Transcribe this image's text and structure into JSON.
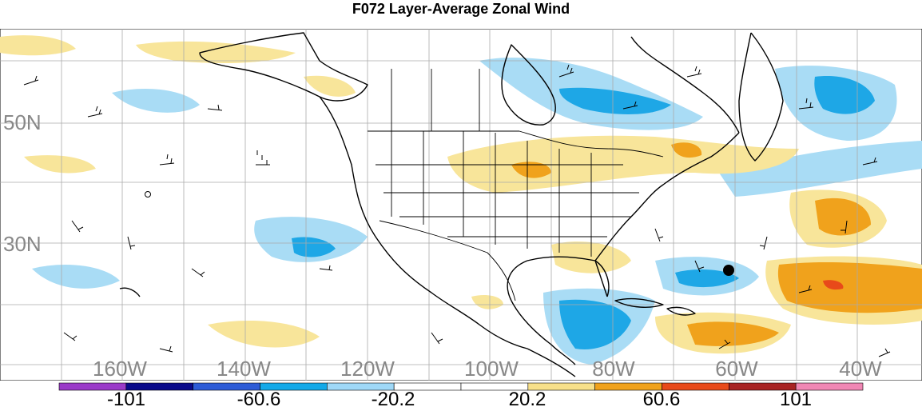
{
  "title": "F072 Layer-Average Zonal Wind",
  "lat_labels": [
    "50N",
    "30N"
  ],
  "lon_labels": [
    "160W",
    "140W",
    "120W",
    "100W",
    "80W",
    "60W",
    "40W"
  ],
  "colorbar": {
    "tick_labels": [
      "-101",
      "-60.6",
      "-20.2",
      "20.2",
      "60.6",
      "101"
    ],
    "colors": [
      "#9a3ac8",
      "#0a0a8a",
      "#2d5bd6",
      "#13a9e8",
      "#9fd8f7",
      "#ffffff",
      "#ffffff",
      "#f7e08a",
      "#f0a21c",
      "#e84a1a",
      "#a82424",
      "#f087b4"
    ]
  },
  "colors": {
    "light_blue": "#a9dcf5",
    "mid_blue": "#1ea7e6",
    "light_yellow": "#f8e59a",
    "orange": "#f0a21c",
    "red": "#e84a1a",
    "grid": "#aaaaaa",
    "coast": "#000000"
  }
}
